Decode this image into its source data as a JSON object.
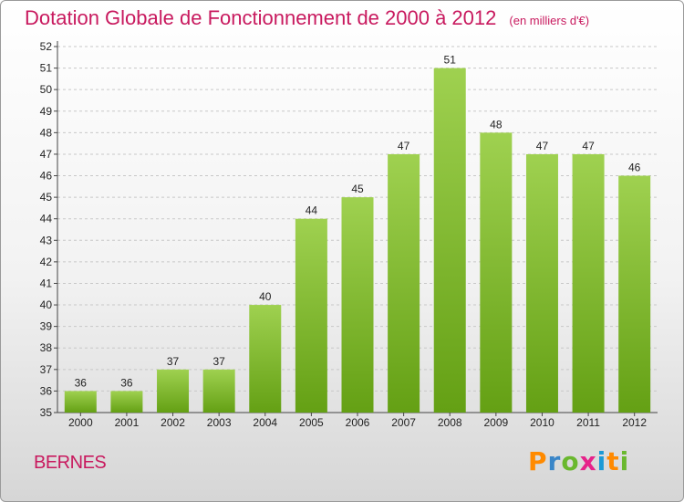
{
  "header": {
    "title": "Dotation Globale de Fonctionnement de 2000 à 2012",
    "subtitle": "(en milliers d'€)"
  },
  "footer": {
    "commune": "BERNES",
    "logo": [
      "P",
      "r",
      "o",
      "x",
      "i",
      "t",
      "i"
    ]
  },
  "colors": {
    "title": "#c8195e",
    "bar_top": "#9fd150",
    "bar_bottom": "#64a014",
    "logo": [
      "#ff8a00",
      "#3a86c8",
      "#6ab82e",
      "#e6238a",
      "#1a9ad6",
      "#ff8a00",
      "#6ab82e"
    ]
  },
  "chart_data": {
    "type": "bar",
    "title": "Dotation Globale de Fonctionnement de 2000 à 2012",
    "subtitle": "(en milliers d'€)",
    "categories": [
      "2000",
      "2001",
      "2002",
      "2003",
      "2004",
      "2005",
      "2006",
      "2007",
      "2008",
      "2009",
      "2010",
      "2011",
      "2012"
    ],
    "values": [
      36,
      36,
      37,
      37,
      40,
      44,
      45,
      47,
      51,
      48,
      47,
      47,
      46
    ],
    "ylim": [
      35,
      52
    ],
    "yticks": [
      35,
      36,
      37,
      38,
      39,
      40,
      41,
      42,
      43,
      44,
      45,
      46,
      47,
      48,
      49,
      50,
      51,
      52
    ],
    "grid": "horizontal dashed",
    "legend": "none"
  }
}
